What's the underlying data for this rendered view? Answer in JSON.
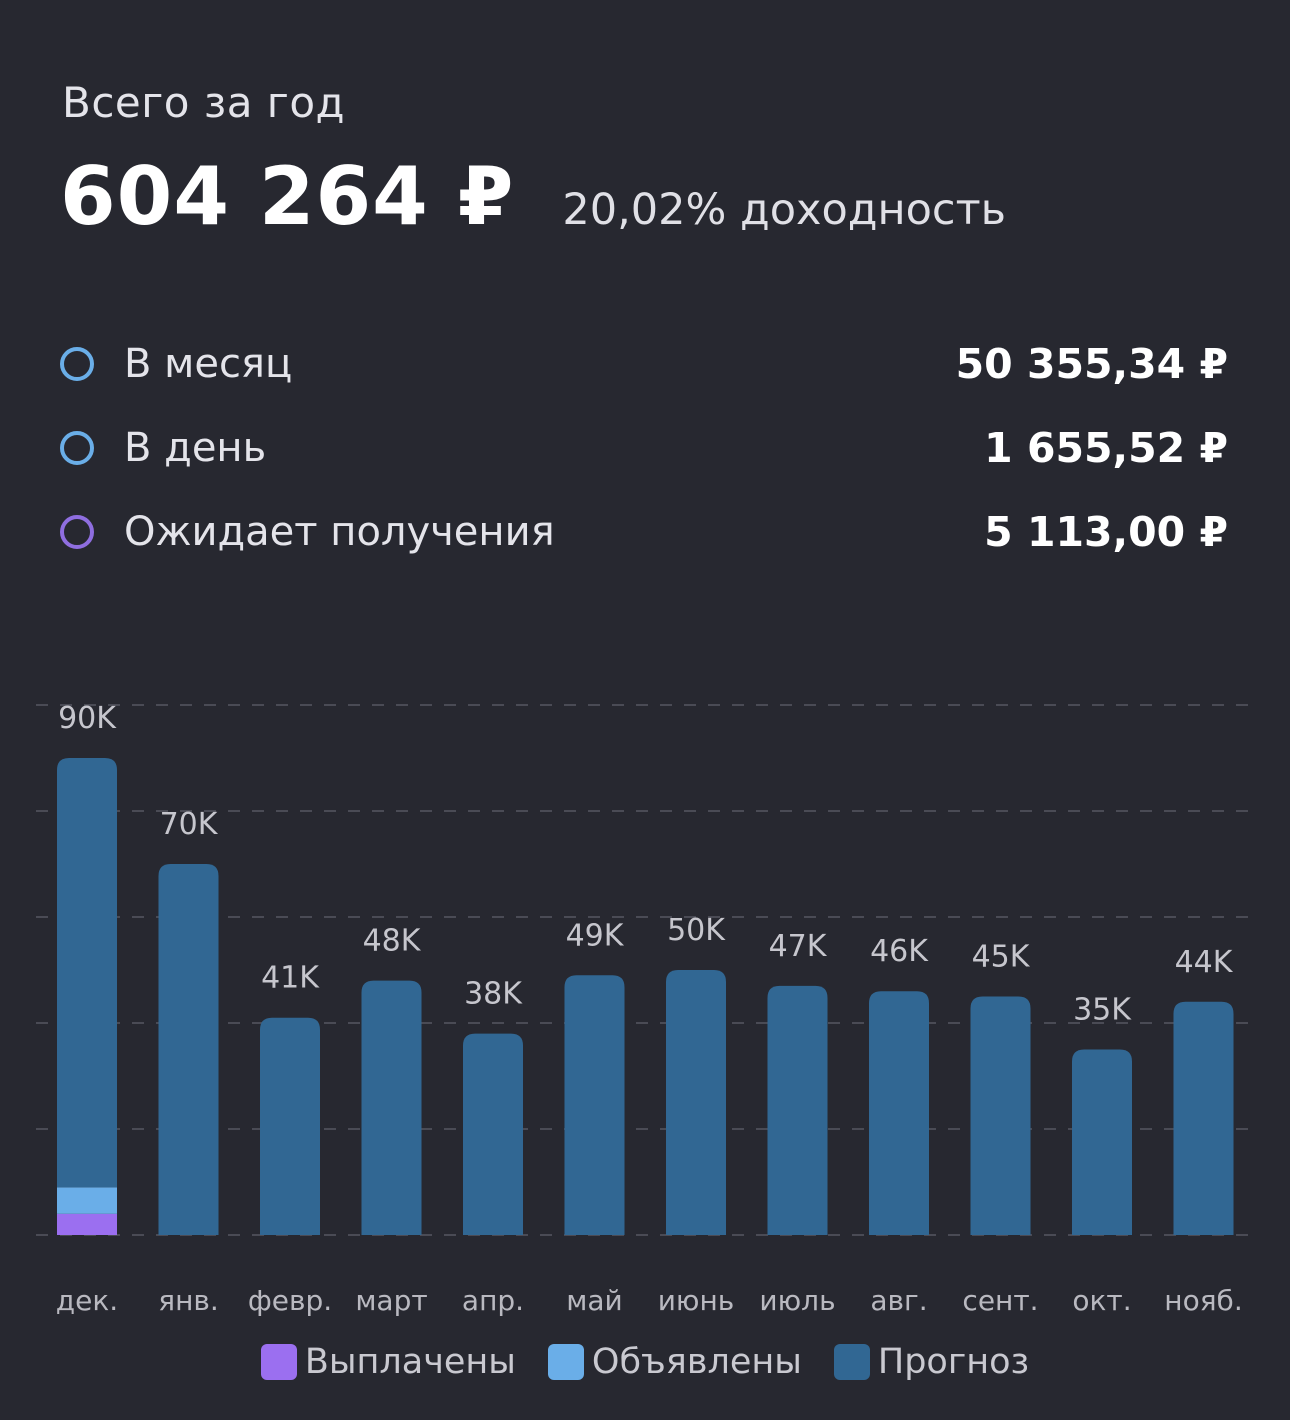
{
  "header": {
    "label": "Всего за год",
    "total": "604 264 ₽",
    "yield": "20,02% доходность"
  },
  "stats": [
    {
      "label": "В месяц",
      "value": "50 355,34 ₽",
      "dot_color": "#6aaee8"
    },
    {
      "label": "В день",
      "value": "1 655,52 ₽",
      "dot_color": "#6aaee8"
    },
    {
      "label": "Ожидает получения",
      "value": "5 113,00 ₽",
      "dot_color": "#8f6ee0"
    }
  ],
  "legend": [
    {
      "label": "Выплачены",
      "color": "#9b6ff0"
    },
    {
      "label": "Объявлены",
      "color": "#6aaee8"
    },
    {
      "label": "Прогноз",
      "color": "#316793"
    }
  ],
  "chart_data": {
    "type": "bar",
    "stacked": true,
    "categories": [
      "дек.",
      "янв.",
      "февр.",
      "март",
      "апр.",
      "май",
      "июнь",
      "июль",
      "авг.",
      "сент.",
      "окт.",
      "нояб."
    ],
    "data_labels": [
      "90K",
      "70K",
      "41K",
      "48K",
      "38K",
      "49K",
      "50K",
      "47K",
      "46K",
      "45K",
      "35K",
      "44K"
    ],
    "series": [
      {
        "name": "Выплачены",
        "color": "#9b6ff0",
        "values": [
          4000,
          0,
          0,
          0,
          0,
          0,
          0,
          0,
          0,
          0,
          0,
          0
        ]
      },
      {
        "name": "Объявлены",
        "color": "#6aaee8",
        "values": [
          5000,
          0,
          0,
          0,
          0,
          0,
          0,
          0,
          0,
          0,
          0,
          0
        ]
      },
      {
        "name": "Прогноз",
        "color": "#316793",
        "values": [
          81000,
          70000,
          41000,
          48000,
          38000,
          49000,
          50000,
          47000,
          46000,
          45000,
          35000,
          44000
        ]
      }
    ],
    "ylim": [
      0,
      100000
    ],
    "gridlines": true,
    "legend_position": "bottom"
  }
}
